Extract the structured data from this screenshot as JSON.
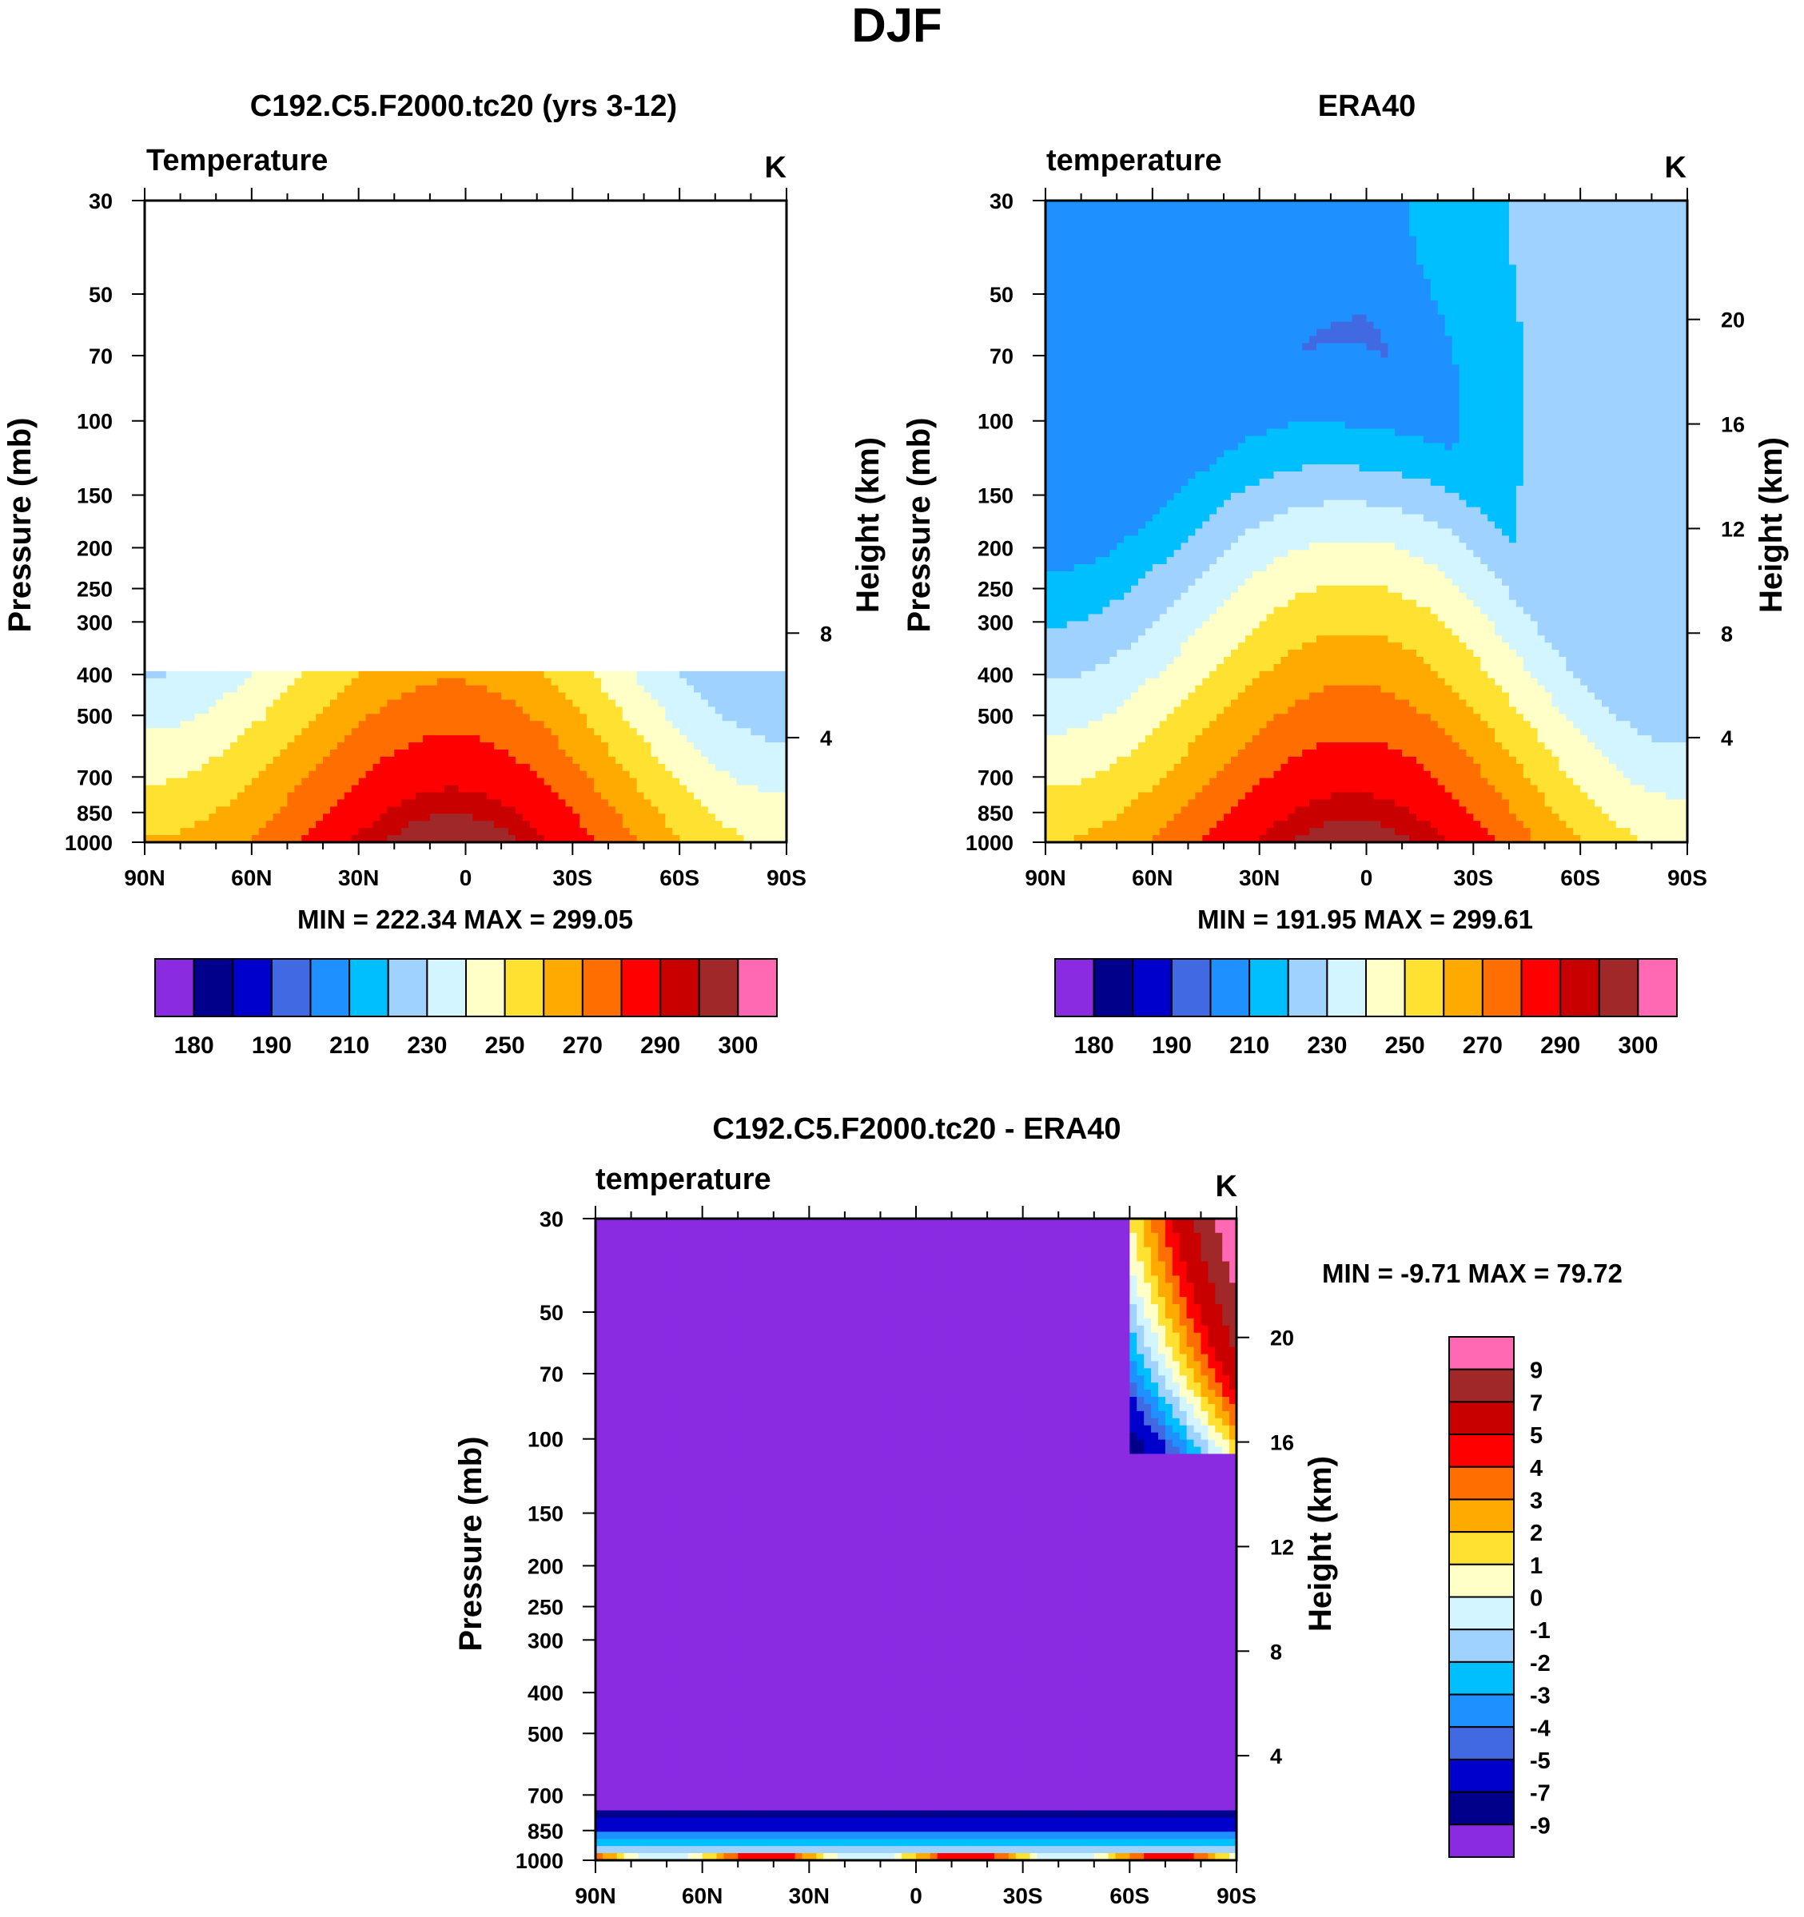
{
  "page_title": "DJF",
  "chart_data": [
    {
      "type": "contour",
      "panel": "model",
      "title": "C192.C5.F2000.tc20 (yrs 3-12)",
      "variable_label": "Temperature",
      "units_label": "K",
      "xlabel": "",
      "ylabel": "Pressure (mb)",
      "y2label": "Height (km)",
      "x_ticks": [
        "90N",
        "60N",
        "30N",
        "0",
        "30S",
        "60S",
        "90S"
      ],
      "y_ticks": [
        30,
        50,
        70,
        100,
        150,
        200,
        250,
        300,
        400,
        500,
        700,
        850,
        1000
      ],
      "y2_ticks": [
        4,
        8
      ],
      "data_top_mb": 400,
      "min_max": "MIN = 222.34  MAX = 299.05",
      "colorbar_labels": [
        "180",
        "190",
        "210",
        "230",
        "250",
        "270",
        "290",
        "300"
      ],
      "color_levels": [
        180,
        185,
        190,
        200,
        210,
        220,
        230,
        240,
        250,
        260,
        270,
        280,
        290,
        295,
        300
      ],
      "colors": [
        "#8a2be2",
        "#00008b",
        "#0000cd",
        "#4169e1",
        "#1e90ff",
        "#00bfff",
        "#a0d2ff",
        "#d2f5ff",
        "#ffffc8",
        "#ffe132",
        "#ffaa00",
        "#ff6e00",
        "#ff0000",
        "#c80000",
        "#a02828",
        "#ff69b4"
      ]
    },
    {
      "type": "contour",
      "panel": "obs",
      "title": "ERA40",
      "variable_label": "temperature",
      "units_label": "K",
      "xlabel": "",
      "ylabel": "Pressure (mb)",
      "y2label": "Height (km)",
      "x_ticks": [
        "90N",
        "60N",
        "30N",
        "0",
        "30S",
        "60S",
        "90S"
      ],
      "y_ticks": [
        30,
        50,
        70,
        100,
        150,
        200,
        250,
        300,
        400,
        500,
        700,
        850,
        1000
      ],
      "y2_ticks": [
        4,
        8,
        12,
        16,
        20
      ],
      "min_max": "MIN = 191.95  MAX = 299.61",
      "colorbar_labels": [
        "180",
        "190",
        "210",
        "230",
        "250",
        "270",
        "290",
        "300"
      ],
      "color_levels": [
        180,
        185,
        190,
        200,
        210,
        220,
        230,
        240,
        250,
        260,
        270,
        280,
        290,
        295,
        300
      ],
      "colors": [
        "#8a2be2",
        "#00008b",
        "#0000cd",
        "#4169e1",
        "#1e90ff",
        "#00bfff",
        "#a0d2ff",
        "#d2f5ff",
        "#ffffc8",
        "#ffe132",
        "#ffaa00",
        "#ff6e00",
        "#ff0000",
        "#c80000",
        "#a02828",
        "#ff69b4"
      ]
    },
    {
      "type": "contour",
      "panel": "diff",
      "title": "C192.C5.F2000.tc20 - ERA40",
      "variable_label": "temperature",
      "units_label": "K",
      "xlabel": "",
      "ylabel": "Pressure (mb)",
      "y2label": "Height (km)",
      "x_ticks": [
        "90N",
        "60N",
        "30N",
        "0",
        "30S",
        "60S",
        "90S"
      ],
      "y_ticks": [
        30,
        50,
        70,
        100,
        150,
        200,
        250,
        300,
        400,
        500,
        700,
        850,
        1000
      ],
      "y2_ticks": [
        4,
        8,
        12,
        16,
        20
      ],
      "min_max": "MIN =  -9.71  MAX =  79.72",
      "colorbar_labels": [
        "9",
        "7",
        "5",
        "4",
        "3",
        "2",
        "1",
        "0",
        "-1",
        "-2",
        "-3",
        "-4",
        "-5",
        "-7",
        "-9"
      ],
      "color_levels": [
        -9,
        -7,
        -5,
        -4,
        -3,
        -2,
        -1,
        0,
        1,
        2,
        3,
        4,
        5,
        7,
        9
      ],
      "colors": [
        "#ff69b4",
        "#a02828",
        "#c80000",
        "#ff0000",
        "#ff6e00",
        "#ffaa00",
        "#ffe132",
        "#ffffc8",
        "#d2f5ff",
        "#a0d2ff",
        "#00bfff",
        "#1e90ff",
        "#4169e1",
        "#0000cd",
        "#00008b",
        "#8a2be2"
      ]
    }
  ]
}
